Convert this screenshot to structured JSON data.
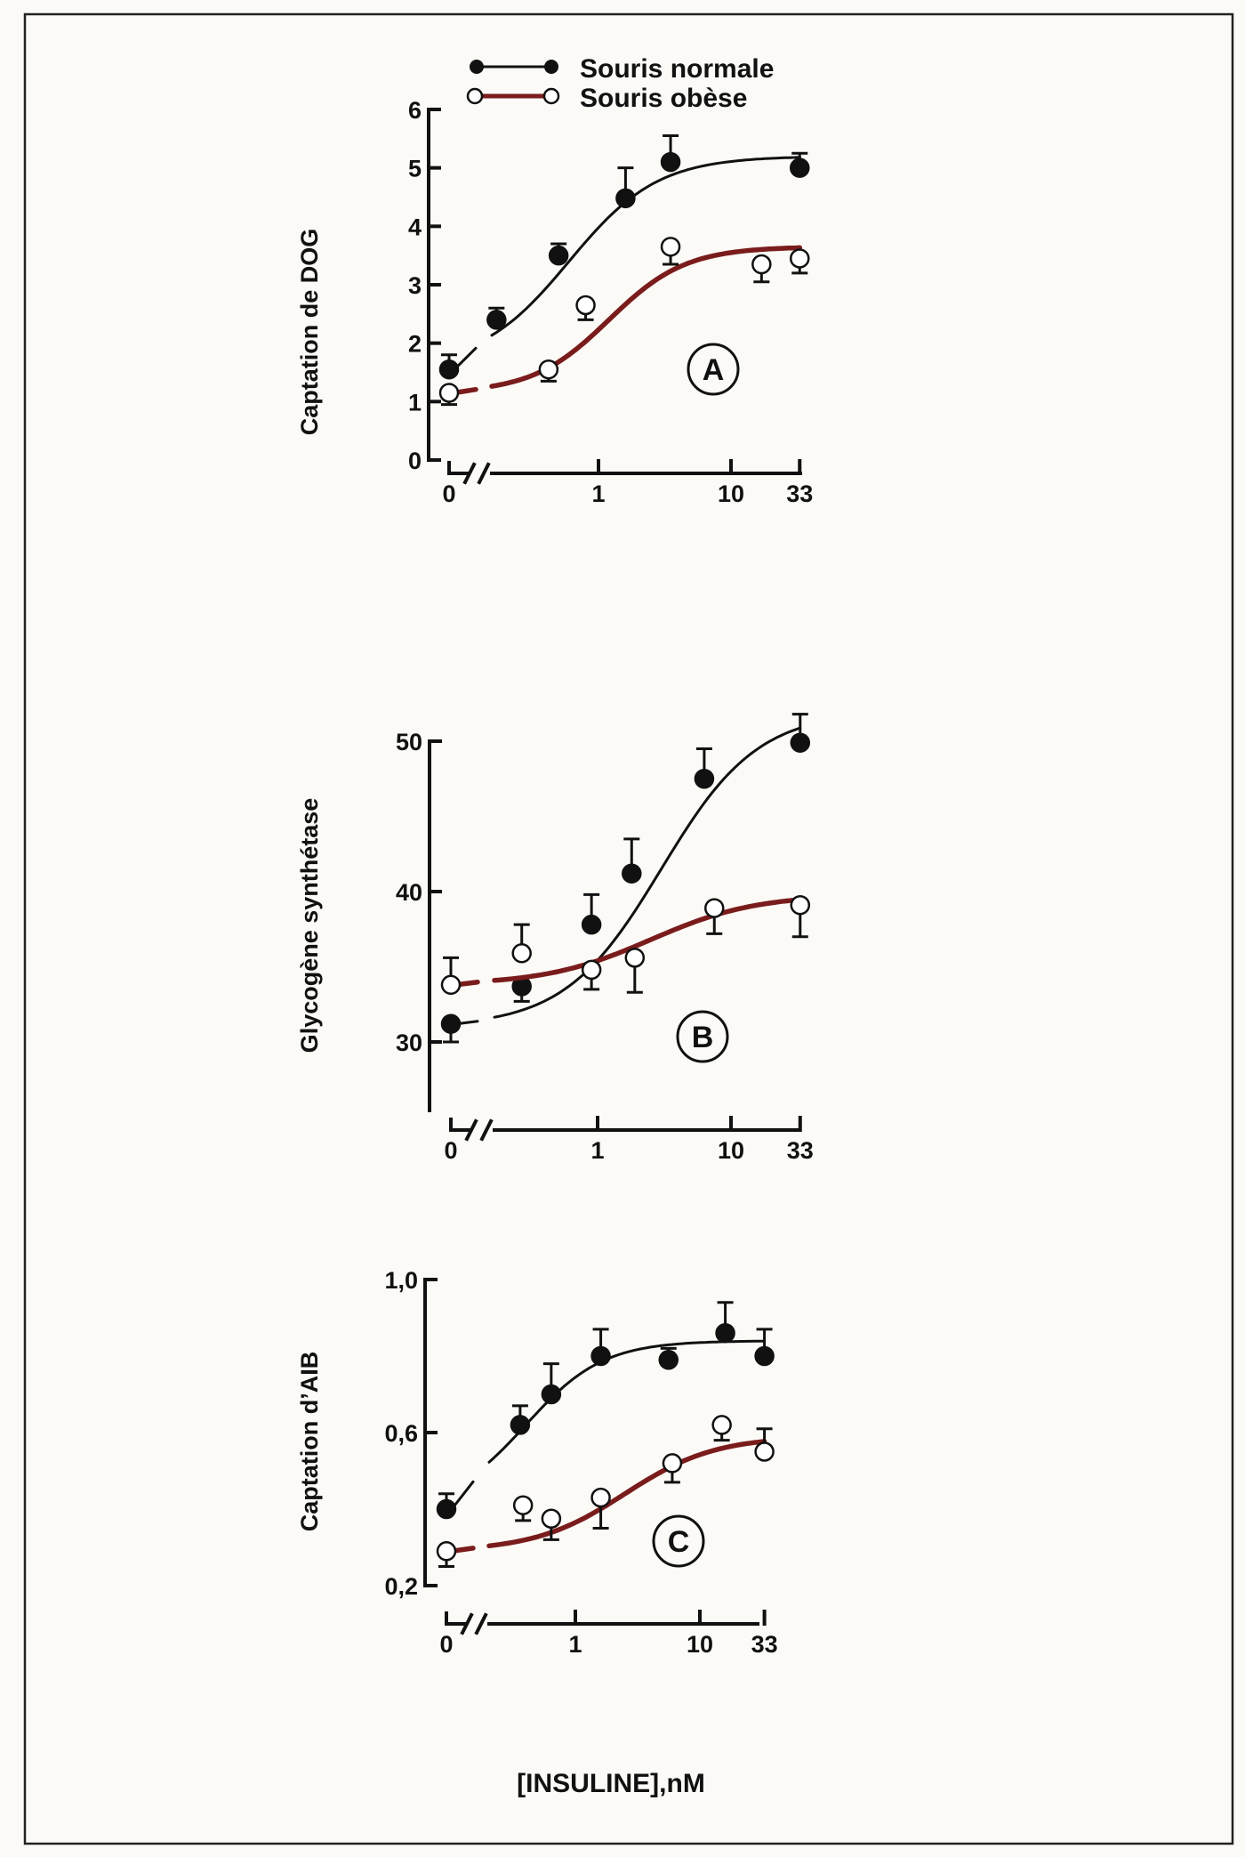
{
  "chart_data": {
    "type": "line",
    "legend": {
      "placement": "top",
      "entries": [
        {
          "name": "Souris normale",
          "marker": "filled-circle",
          "color": "#111111"
        },
        {
          "name": "Souris obèse",
          "marker": "open-circle",
          "color": "#7a1c1c"
        }
      ]
    },
    "xlabel": "[INSULINE],nM",
    "x_scale": "log (with break at 0)",
    "x_ticks": [
      {
        "value": 0,
        "label": "0"
      },
      {
        "value": 1,
        "label": "1"
      },
      {
        "value": 10,
        "label": "10"
      },
      {
        "value": 33,
        "label": "33"
      }
    ],
    "panels": [
      {
        "id": "A",
        "ylabel": "Captation de DOG",
        "ylim": [
          0,
          6
        ],
        "y_ticks": [
          {
            "value": 0,
            "label": "0"
          },
          {
            "value": 1,
            "label": "1"
          },
          {
            "value": 2,
            "label": "2"
          },
          {
            "value": 3,
            "label": "3"
          },
          {
            "value": 4,
            "label": "4"
          },
          {
            "value": 5,
            "label": "5"
          },
          {
            "value": 6,
            "label": "6"
          }
        ],
        "series": [
          {
            "name": "Souris normale",
            "points": [
              {
                "x": 0,
                "y": 1.55,
                "err_high": 1.8
              },
              {
                "x": 0.17,
                "y": 2.4,
                "err_high": 2.6
              },
              {
                "x": 0.5,
                "y": 3.5,
                "err_high": 3.7
              },
              {
                "x": 1.6,
                "y": 4.48,
                "err_high": 5.0
              },
              {
                "x": 3.5,
                "y": 5.1,
                "err_high": 5.55
              },
              {
                "x": 33,
                "y": 5.0,
                "err_high": 5.25
              }
            ],
            "fit": {
              "bottom": 1.6,
              "top": 5.2,
              "ec50": 0.6,
              "hill": 1.3
            }
          },
          {
            "name": "Souris obèse",
            "points": [
              {
                "x": 0,
                "y": 1.15,
                "err_low": 0.95
              },
              {
                "x": 0.42,
                "y": 1.55,
                "err_low": 1.35
              },
              {
                "x": 0.8,
                "y": 2.65,
                "err_low": 2.4
              },
              {
                "x": 3.5,
                "y": 3.65,
                "err_low": 3.35
              },
              {
                "x": 17,
                "y": 3.35,
                "err_low": 3.05
              },
              {
                "x": 33,
                "y": 3.45,
                "err_low": 3.2
              }
            ],
            "fit": {
              "bottom": 1.15,
              "top": 3.65,
              "ec50": 1.2,
              "hill": 1.5
            }
          }
        ]
      },
      {
        "id": "B",
        "ylabel": "Glycogène synthétase",
        "ylim": [
          25,
          50
        ],
        "y_ticks": [
          {
            "value": 30,
            "label": "30"
          },
          {
            "value": 40,
            "label": "40"
          },
          {
            "value": 50,
            "label": "50"
          }
        ],
        "series": [
          {
            "name": "Souris normale",
            "points": [
              {
                "x": 0,
                "y": 31.2,
                "err_low": 30.0
              },
              {
                "x": 0.27,
                "y": 33.7,
                "err_low": 32.7
              },
              {
                "x": 0.9,
                "y": 37.8,
                "err_high": 39.8
              },
              {
                "x": 1.8,
                "y": 41.2,
                "err_high": 43.5
              },
              {
                "x": 6.3,
                "y": 47.5,
                "err_high": 49.5
              },
              {
                "x": 33,
                "y": 49.9,
                "err_high": 51.8
              }
            ],
            "fit": {
              "bottom": 31,
              "top": 52,
              "ec50": 3,
              "hill": 1.2
            }
          },
          {
            "name": "Souris obèse",
            "points": [
              {
                "x": 0,
                "y": 33.8,
                "err_high": 35.6
              },
              {
                "x": 0.27,
                "y": 35.9,
                "err_high": 37.8
              },
              {
                "x": 0.9,
                "y": 34.8,
                "err_low": 33.5
              },
              {
                "x": 1.9,
                "y": 35.6,
                "err_low": 33.3
              },
              {
                "x": 7.5,
                "y": 38.9,
                "err_low": 37.2
              },
              {
                "x": 33,
                "y": 39.1,
                "err_low": 37.0
              }
            ],
            "fit": {
              "bottom": 33.8,
              "top": 39.8,
              "ec50": 2.5,
              "hill": 1.1
            }
          }
        ]
      },
      {
        "id": "C",
        "ylabel": "Captation d’AIB",
        "ylim": [
          0.2,
          1.0
        ],
        "y_ticks": [
          {
            "value": 0.2,
            "label": "0,2"
          },
          {
            "value": 0.6,
            "label": "0,6"
          },
          {
            "value": 1.0,
            "label": "1,0"
          }
        ],
        "series": [
          {
            "name": "Souris normale",
            "points": [
              {
                "x": 0,
                "y": 0.4,
                "err_high": 0.44
              },
              {
                "x": 0.36,
                "y": 0.62,
                "err_high": 0.67
              },
              {
                "x": 0.64,
                "y": 0.7,
                "err_high": 0.78
              },
              {
                "x": 1.6,
                "y": 0.8,
                "err_high": 0.87
              },
              {
                "x": 5.6,
                "y": 0.79,
                "err_high": 0.82
              },
              {
                "x": 16,
                "y": 0.86,
                "err_high": 0.94
              },
              {
                "x": 33,
                "y": 0.8,
                "err_high": 0.87
              }
            ],
            "fit": {
              "bottom": 0.4,
              "top": 0.84,
              "ec50": 0.4,
              "hill": 1.4
            }
          },
          {
            "name": "Souris obèse",
            "points": [
              {
                "x": 0,
                "y": 0.29,
                "err_low": 0.25
              },
              {
                "x": 0.38,
                "y": 0.41,
                "err_low": 0.37
              },
              {
                "x": 0.64,
                "y": 0.375,
                "err_low": 0.32
              },
              {
                "x": 1.6,
                "y": 0.43,
                "err_low": 0.35
              },
              {
                "x": 6,
                "y": 0.52,
                "err_low": 0.47
              },
              {
                "x": 15,
                "y": 0.62,
                "err_low": 0.58
              },
              {
                "x": 33,
                "y": 0.55,
                "err_high": 0.61
              }
            ],
            "fit": {
              "bottom": 0.29,
              "top": 0.59,
              "ec50": 2.5,
              "hill": 1.2
            }
          }
        ]
      }
    ]
  }
}
